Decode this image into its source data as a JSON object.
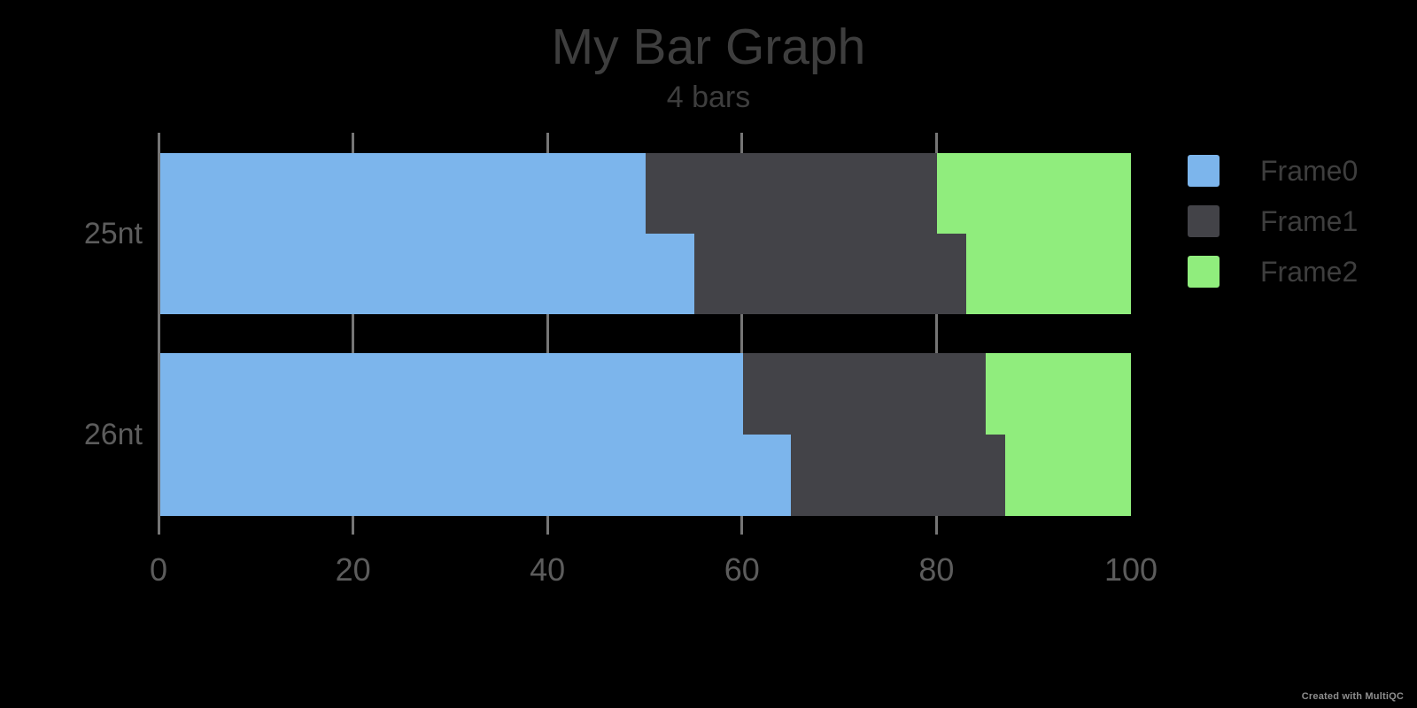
{
  "chart_data": {
    "type": "bar",
    "orientation": "horizontal",
    "stacked": true,
    "title": "My Bar Graph",
    "subtitle": "4 bars",
    "xlabel": "",
    "ylabel": "",
    "categories": [
      "25nt",
      "26nt"
    ],
    "bars_per_category": 2,
    "series": [
      {
        "name": "Frame0",
        "color": "#7cb5ec",
        "values": [
          50,
          55,
          60,
          65
        ]
      },
      {
        "name": "Frame1",
        "color": "#434348",
        "values": [
          30,
          28,
          25,
          22
        ]
      },
      {
        "name": "Frame2",
        "color": "#90ed7d",
        "values": [
          20,
          17,
          15,
          13
        ]
      }
    ],
    "rows": [
      {
        "label": "25nt",
        "bars": [
          {
            "segments": [
              50,
              30,
              20
            ]
          },
          {
            "segments": [
              55,
              28,
              17
            ]
          }
        ]
      },
      {
        "label": "26nt",
        "bars": [
          {
            "segments": [
              60,
              25,
              15
            ]
          },
          {
            "segments": [
              65,
              22,
              13
            ]
          }
        ]
      }
    ],
    "xaxis": {
      "range": [
        0,
        100
      ],
      "tick_values": [
        0,
        20,
        40,
        60,
        80,
        100
      ],
      "tick_labels": [
        "0",
        "20",
        "40",
        "60",
        "80",
        "100"
      ],
      "gridline_values": [
        0,
        20,
        40,
        60,
        80
      ]
    },
    "legend": {
      "position": "right",
      "entries": [
        {
          "label": "Frame0",
          "color": "#7cb5ec"
        },
        {
          "label": "Frame1",
          "color": "#434348"
        },
        {
          "label": "Frame2",
          "color": "#90ed7d"
        }
      ]
    },
    "grid": true
  },
  "footer": {
    "credit": "Created with MultiQC"
  },
  "colors": {
    "background": "#000000",
    "title_text": "#3e3e3e",
    "axis_text": "#5c5c5c",
    "gridline": "#757575",
    "legend_text": "#3e3e3e",
    "footer_text": "#8e8e8e",
    "series": [
      "#7cb5ec",
      "#434348",
      "#90ed7d"
    ]
  }
}
